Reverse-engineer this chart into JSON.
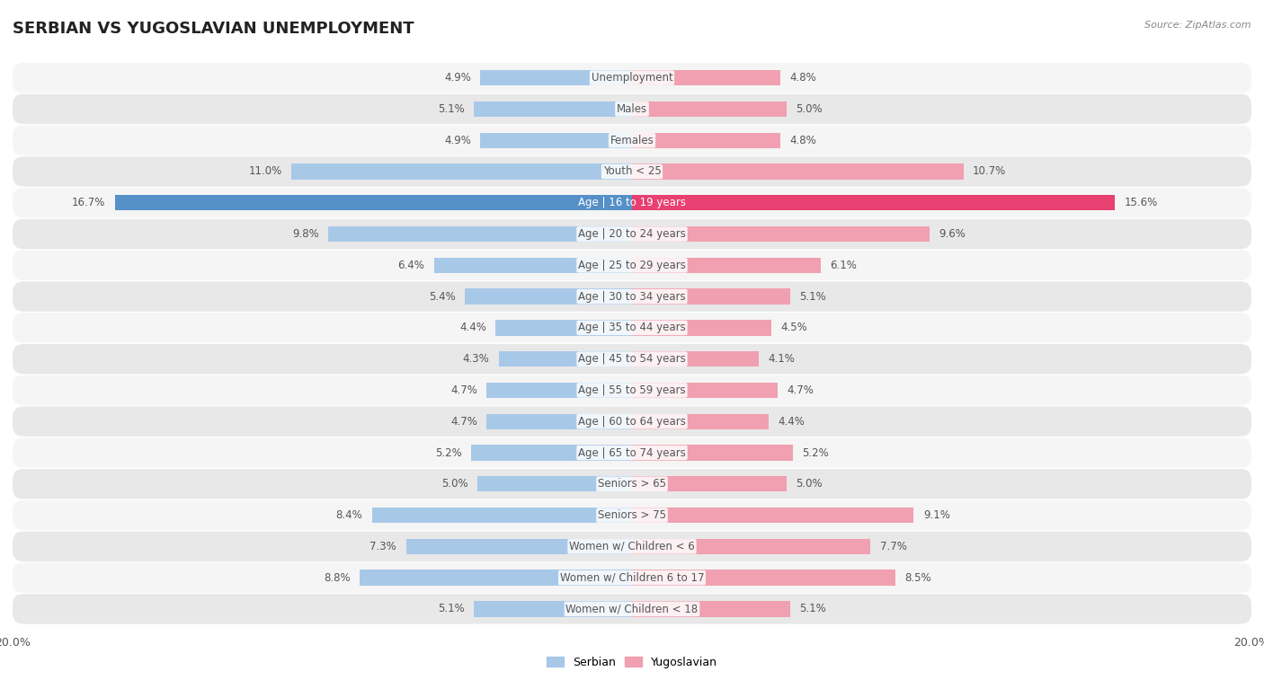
{
  "title": "SERBIAN VS YUGOSLAVIAN UNEMPLOYMENT",
  "source": "Source: ZipAtlas.com",
  "categories": [
    "Unemployment",
    "Males",
    "Females",
    "Youth < 25",
    "Age | 16 to 19 years",
    "Age | 20 to 24 years",
    "Age | 25 to 29 years",
    "Age | 30 to 34 years",
    "Age | 35 to 44 years",
    "Age | 45 to 54 years",
    "Age | 55 to 59 years",
    "Age | 60 to 64 years",
    "Age | 65 to 74 years",
    "Seniors > 65",
    "Seniors > 75",
    "Women w/ Children < 6",
    "Women w/ Children 6 to 17",
    "Women w/ Children < 18"
  ],
  "serbian": [
    4.9,
    5.1,
    4.9,
    11.0,
    16.7,
    9.8,
    6.4,
    5.4,
    4.4,
    4.3,
    4.7,
    4.7,
    5.2,
    5.0,
    8.4,
    7.3,
    8.8,
    5.1
  ],
  "yugoslavian": [
    4.8,
    5.0,
    4.8,
    10.7,
    15.6,
    9.6,
    6.1,
    5.1,
    4.5,
    4.1,
    4.7,
    4.4,
    5.2,
    5.0,
    9.1,
    7.7,
    8.5,
    5.1
  ],
  "serbian_color": "#a8c8e8",
  "yugoslavian_color": "#f0a0b0",
  "highlight_serbian_color": "#5590c8",
  "highlight_yugoslavian_color": "#e84070",
  "bg_color": "#ffffff",
  "row_color_odd": "#f5f5f5",
  "row_color_even": "#e8e8e8",
  "label_color": "#555555",
  "title_color": "#222222",
  "source_color": "#888888",
  "bar_height": 0.5,
  "max_val": 20.0,
  "legend_serbian": "Serbian",
  "legend_yugoslavian": "Yugoslavian",
  "highlight_row": "Age | 16 to 19 years"
}
